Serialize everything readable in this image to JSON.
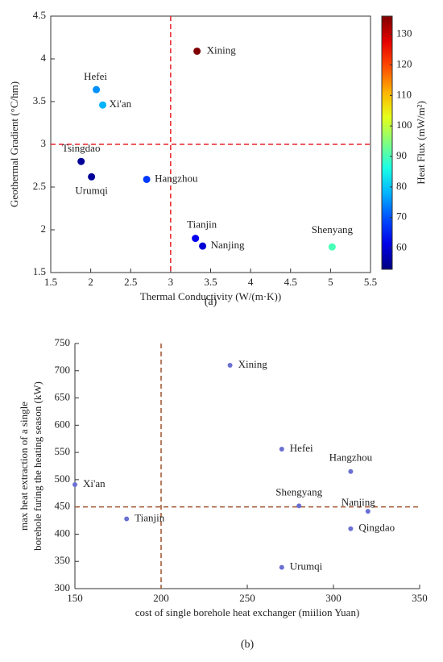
{
  "chart_data": [
    {
      "type": "scatter",
      "xlabel": "Thermal Conductivity (W/(m·K))",
      "ylabel": "Geothermal Gradient (°C/hm)",
      "x": [
        3.33,
        2.07,
        2.15,
        1.88,
        2.01,
        2.7,
        3.31,
        3.4,
        5.02
      ],
      "values": [
        4.09,
        3.64,
        3.46,
        2.8,
        2.62,
        2.59,
        1.9,
        1.81,
        1.8
      ],
      "point_labels": [
        "Xining",
        "Hefei",
        "Xi'an",
        "Tsingdao",
        "Urumqi",
        "Hangzhou",
        "Tianjin",
        "Nanjing",
        "Shenyang"
      ],
      "color_values": [
        136,
        75,
        78,
        55,
        55,
        68,
        62,
        60,
        90
      ],
      "colormap": "jet",
      "clim": [
        53,
        136
      ],
      "cticks": [
        60,
        70,
        80,
        90,
        100,
        110,
        120,
        130
      ],
      "clabel": "Heat Flux (mW/m²)",
      "xlim": [
        1.5,
        5.5
      ],
      "xticks": [
        1.5,
        2,
        2.5,
        3,
        3.5,
        4,
        4.5,
        5,
        5.5
      ],
      "ylim": [
        1.5,
        4.5
      ],
      "yticks": [
        1.5,
        2,
        2.5,
        3,
        3.5,
        4,
        4.5
      ],
      "vlines": [
        3
      ],
      "hlines": [
        3
      ],
      "line_color": "#e8222a",
      "caption": "(a)"
    },
    {
      "type": "scatter",
      "xlabel": "cost of single borehole heat exchanger (miilion Yuan)",
      "ylabel": [
        "max heat extraction of a single",
        "borehole furing the heating season (kW)"
      ],
      "x": [
        240,
        270,
        310,
        150,
        280,
        320,
        180,
        310,
        270
      ],
      "values": [
        710,
        556,
        515,
        491,
        452,
        442,
        428,
        410,
        339
      ],
      "point_labels": [
        "Xining",
        "Hefei",
        "Hangzhou",
        "Xi'an",
        "Shengyang",
        "Nanjing",
        "Tianjin",
        "Qingdao",
        "Urumqi"
      ],
      "color": "#6a70d2",
      "xlim": [
        150,
        350
      ],
      "xticks": [
        150,
        200,
        250,
        300,
        350
      ],
      "ylim": [
        300,
        750
      ],
      "yticks": [
        300,
        350,
        400,
        450,
        500,
        550,
        600,
        650,
        700,
        750
      ],
      "vlines": [
        200
      ],
      "hlines": [
        450
      ],
      "line_color": "#a0522d",
      "caption": "(b)"
    }
  ]
}
